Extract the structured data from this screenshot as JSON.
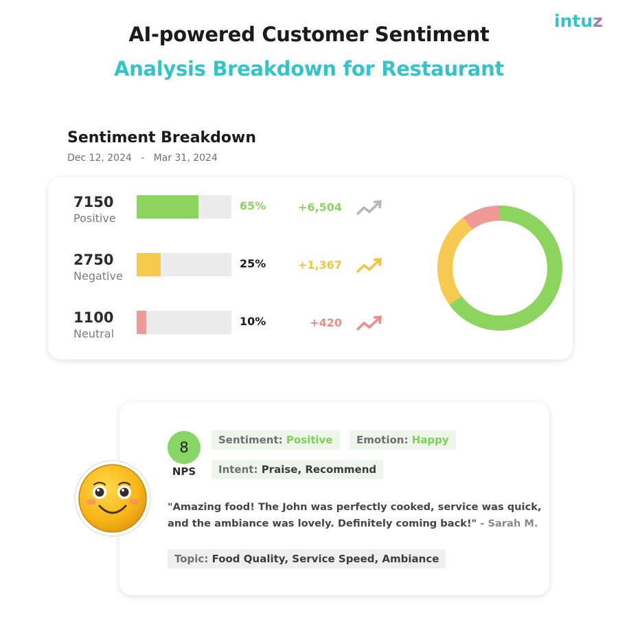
{
  "brand": {
    "logo_text": "intuz",
    "accent": "#34c3c8",
    "accent2": "#e0559a"
  },
  "header": {
    "title_line1": "AI-powered Customer Sentiment",
    "title_line2": "Analysis Breakdown for Restaurant"
  },
  "section": {
    "title": "Sentiment Breakdown",
    "date_range": "Dec 12, 2024   -   Mar 31, 2024"
  },
  "breakdown": [
    {
      "count": "7150",
      "label": "Positive",
      "percent": "65%",
      "share": 0.65,
      "delta": "+6,504",
      "color": "#8bd45e",
      "pct_color": "#8bd45e",
      "trend_color": "#b7b7b7",
      "trend_icon": "trending-up-icon"
    },
    {
      "count": "2750",
      "label": "Negative",
      "percent": "25%",
      "share": 0.25,
      "delta": "+1,367",
      "color": "#f6c94f",
      "pct_color": "#1b1b1b",
      "trend_color": "#f3c342",
      "trend_icon": "trending-up-icon"
    },
    {
      "count": "1100",
      "label": "Neutral",
      "percent": "10%",
      "share": 0.1,
      "delta": "+420",
      "color": "#ef9a96",
      "pct_color": "#1b1b1b",
      "trend_color": "#ee8e8c",
      "trend_icon": "trending-up-icon"
    }
  ],
  "donut": {
    "segments": [
      {
        "name": "Positive",
        "value": 65,
        "color": "#8bd45e"
      },
      {
        "name": "Negative",
        "value": 25,
        "color": "#f6c94f"
      },
      {
        "name": "Neutral",
        "value": 10,
        "color": "#ef9a96"
      }
    ]
  },
  "review": {
    "nps_score": "8",
    "nps_label": "NPS",
    "sentiment_key": "Sentiment:",
    "sentiment_value": "Positive",
    "emotion_key": "Emotion:",
    "emotion_value": "Happy",
    "intent_key": "Intent:",
    "intent_value": "Praise, Recommend",
    "quote_text": "\"Amazing food! The John was perfectly cooked, service was quick, and the ambiance was lovely. Definitely coming back!\"",
    "quote_author": "- Sarah M.",
    "topic_key": "Topic:",
    "topic_value": "Food Quality, Service Speed, Ambiance",
    "avatar_icon": "smiley-face-icon"
  }
}
